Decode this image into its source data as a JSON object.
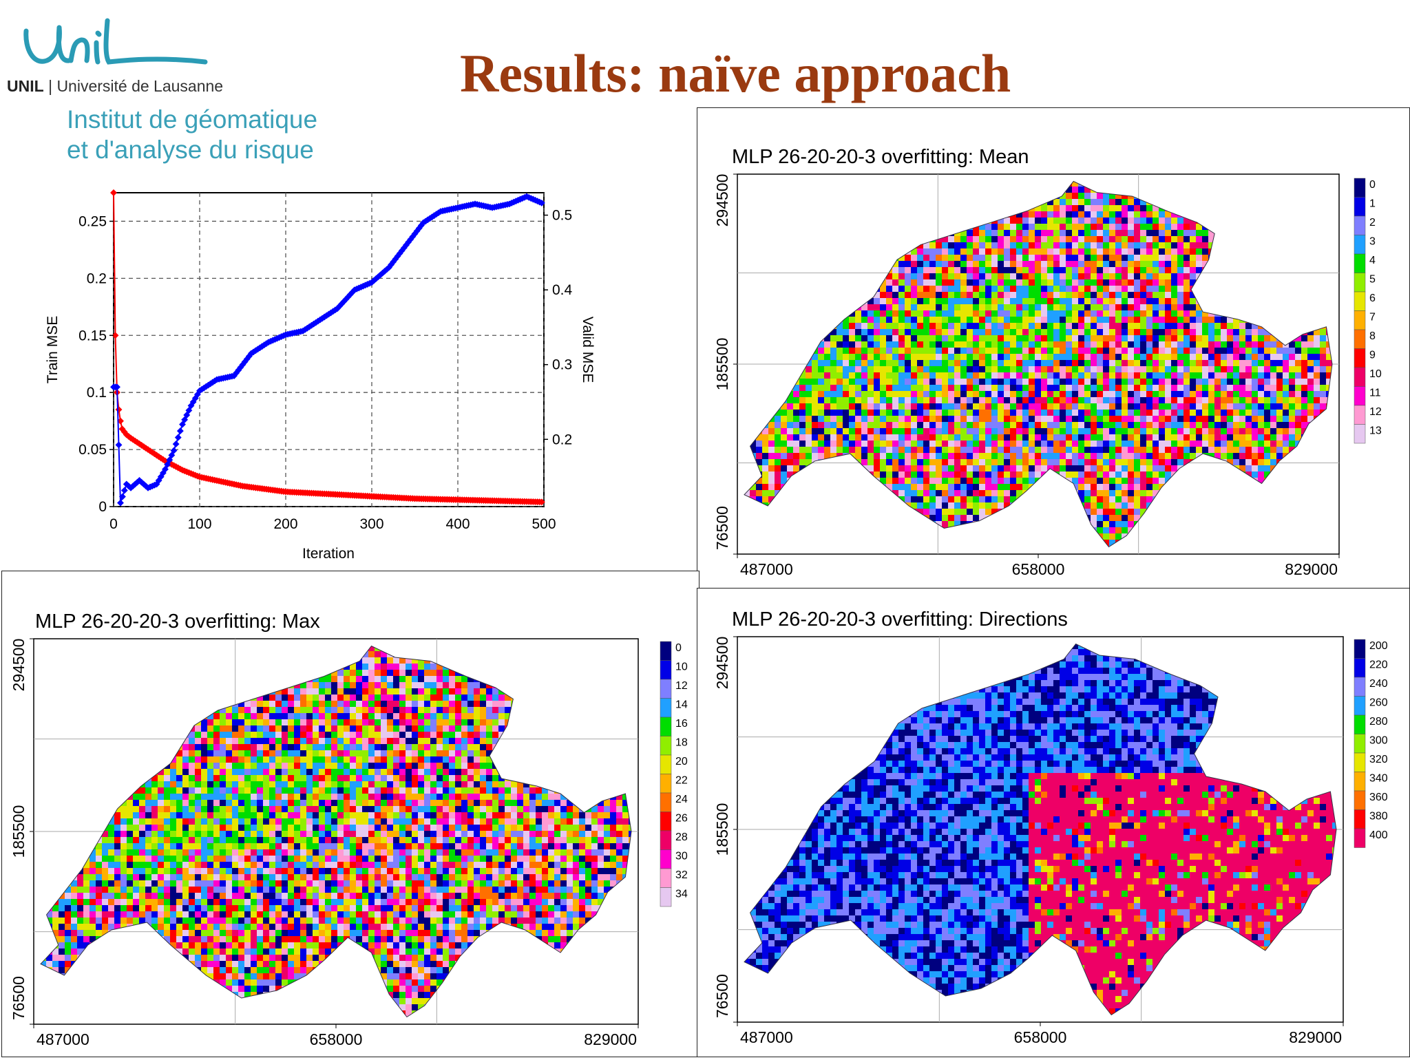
{
  "header": {
    "title": "Results: naïve approach",
    "logo_script": "Unil",
    "university_abbr": "UNIL",
    "university_name": "Université de Lausanne",
    "institute_line1": "Institut de géomatique",
    "institute_line2": "et d'analyse du risque"
  },
  "colors": {
    "title": "#9a3a10",
    "institute": "#3aa0b8",
    "train_series": "#ff0000",
    "valid_series": "#0000ff"
  },
  "chart_data": [
    {
      "type": "line",
      "title": "",
      "xlabel": "Iteration",
      "ylabel": "Train MSE",
      "y2label": "Valid MSE",
      "xlim": [
        0,
        500
      ],
      "ylim": [
        0,
        0.275
      ],
      "y2lim": [
        0.11,
        0.53
      ],
      "x_ticks": [
        "0",
        "100",
        "200",
        "300",
        "400",
        "500"
      ],
      "y_ticks": [
        "0",
        "0.05",
        "0.1",
        "0.15",
        "0.2",
        "0.25"
      ],
      "y2_ticks": [
        "0.2",
        "0.3",
        "0.4",
        "0.5"
      ],
      "grid": true,
      "series": [
        {
          "axis": "left",
          "color": "#ff0000",
          "x": [
            0,
            2,
            4,
            6,
            8,
            10,
            15,
            20,
            30,
            40,
            50,
            60,
            80,
            100,
            150,
            200,
            250,
            300,
            350,
            400,
            450,
            500
          ],
          "values": [
            0.275,
            0.15,
            0.1,
            0.085,
            0.075,
            0.068,
            0.063,
            0.06,
            0.055,
            0.05,
            0.045,
            0.04,
            0.032,
            0.026,
            0.018,
            0.013,
            0.011,
            0.009,
            0.007,
            0.006,
            0.005,
            0.004
          ]
        },
        {
          "axis": "right",
          "color": "#0000ff",
          "x": [
            0,
            4,
            8,
            15,
            20,
            30,
            40,
            50,
            60,
            70,
            80,
            90,
            100,
            120,
            140,
            160,
            180,
            200,
            220,
            240,
            260,
            280,
            300,
            320,
            340,
            360,
            380,
            400,
            420,
            440,
            460,
            480,
            500
          ],
          "values": [
            0.27,
            0.27,
            0.115,
            0.14,
            0.135,
            0.145,
            0.135,
            0.14,
            0.16,
            0.185,
            0.22,
            0.245,
            0.265,
            0.28,
            0.285,
            0.315,
            0.33,
            0.34,
            0.345,
            0.36,
            0.375,
            0.4,
            0.41,
            0.43,
            0.46,
            0.49,
            0.505,
            0.51,
            0.515,
            0.51,
            0.515,
            0.525,
            0.515
          ]
        }
      ]
    },
    {
      "type": "heatmap",
      "title": "MLP 26-20-20-3 overfitting:  Mean",
      "x_ticks": [
        "487000",
        "658000",
        "829000"
      ],
      "y_ticks": [
        "76500",
        "185500",
        "294500"
      ],
      "legend": [
        "0",
        "1",
        "2",
        "3",
        "4",
        "5",
        "6",
        "7",
        "8",
        "9",
        "10",
        "11",
        "12",
        "13"
      ],
      "legend_colors": [
        "#00007f",
        "#0000e6",
        "#7f7fff",
        "#20a0ff",
        "#00dd00",
        "#90ee00",
        "#e6e600",
        "#ffb000",
        "#ff7000",
        "#ff0000",
        "#ee0066",
        "#ff00cc",
        "#ff9ad2",
        "#e6c8f0"
      ],
      "legend_placement": "right"
    },
    {
      "type": "heatmap",
      "title": "MLP 26-20-20-3 overfitting:  Max",
      "x_ticks": [
        "487000",
        "658000",
        "829000"
      ],
      "y_ticks": [
        "76500",
        "185500",
        "294500"
      ],
      "legend": [
        "0",
        "10",
        "12",
        "14",
        "16",
        "18",
        "20",
        "22",
        "24",
        "26",
        "28",
        "30",
        "32",
        "34"
      ],
      "legend_colors": [
        "#00007f",
        "#0000e6",
        "#7f7fff",
        "#20a0ff",
        "#00dd00",
        "#90ee00",
        "#e6e600",
        "#ffb000",
        "#ff7000",
        "#ff0000",
        "#ee0066",
        "#ff00cc",
        "#ff9ad2",
        "#e6c8f0"
      ],
      "legend_placement": "right"
    },
    {
      "type": "heatmap",
      "title": "MLP 26-20-20-3 overfitting:  Directions",
      "x_ticks": [
        "487000",
        "658000",
        "829000"
      ],
      "y_ticks": [
        "76500",
        "185500",
        "294500"
      ],
      "legend": [
        "200",
        "220",
        "240",
        "260",
        "280",
        "300",
        "320",
        "340",
        "360",
        "380",
        "400"
      ],
      "legend_colors": [
        "#00007f",
        "#0000e6",
        "#7f7fff",
        "#20a0ff",
        "#00dd00",
        "#90ee00",
        "#e6e600",
        "#ffb000",
        "#ff7000",
        "#ff0000",
        "#ee0066"
      ],
      "legend_placement": "right"
    }
  ]
}
